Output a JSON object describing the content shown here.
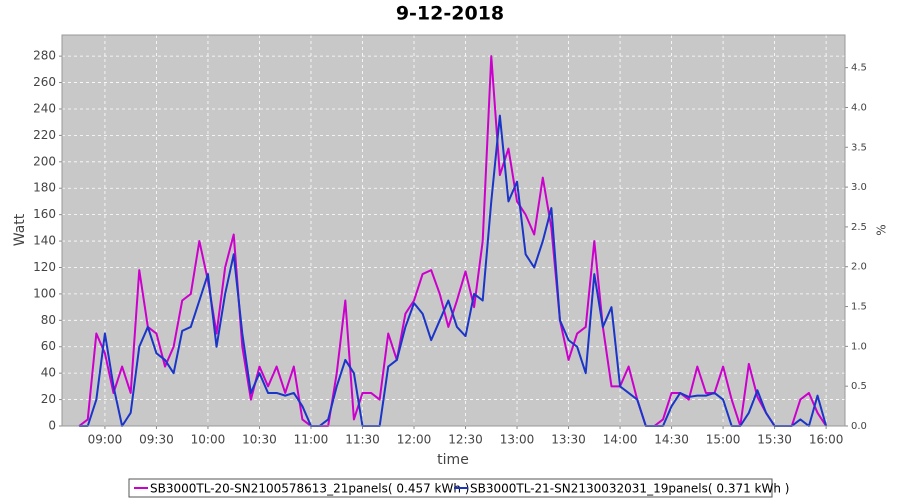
{
  "chart_data": {
    "type": "line",
    "title": "9-12-2018",
    "xlabel": "time",
    "ylabel": "Watt",
    "y2label": "%",
    "x": [
      "08:45",
      "08:50",
      "08:55",
      "09:00",
      "09:05",
      "09:10",
      "09:15",
      "09:20",
      "09:25",
      "09:30",
      "09:35",
      "09:40",
      "09:45",
      "09:50",
      "09:55",
      "10:00",
      "10:05",
      "10:10",
      "10:15",
      "10:20",
      "10:25",
      "10:30",
      "10:35",
      "10:40",
      "10:45",
      "10:50",
      "10:55",
      "11:00",
      "11:05",
      "11:10",
      "11:15",
      "11:20",
      "11:25",
      "11:30",
      "11:35",
      "11:40",
      "11:45",
      "11:50",
      "11:55",
      "12:00",
      "12:05",
      "12:10",
      "12:15",
      "12:20",
      "12:25",
      "12:30",
      "12:35",
      "12:40",
      "12:45",
      "12:50",
      "12:55",
      "13:00",
      "13:05",
      "13:10",
      "13:15",
      "13:20",
      "13:25",
      "13:30",
      "13:35",
      "13:40",
      "13:45",
      "13:50",
      "13:55",
      "14:00",
      "14:05",
      "14:10",
      "14:15",
      "14:20",
      "14:25",
      "14:30",
      "14:35",
      "14:40",
      "14:45",
      "14:50",
      "14:55",
      "15:00",
      "15:05",
      "15:10",
      "15:15",
      "15:20",
      "15:25",
      "15:30",
      "15:35",
      "15:40",
      "15:45",
      "15:50",
      "15:55",
      "16:00"
    ],
    "series": [
      {
        "name": "SB3000TL-20-SN2100578613_21panels( 0.457 kWh )",
        "color": "#cc00cc",
        "values": [
          0,
          5,
          70,
          55,
          25,
          45,
          25,
          118,
          75,
          70,
          45,
          60,
          95,
          100,
          140,
          110,
          70,
          120,
          145,
          60,
          20,
          45,
          30,
          45,
          25,
          45,
          5,
          0,
          0,
          0,
          40,
          95,
          5,
          25,
          25,
          20,
          70,
          50,
          85,
          95,
          115,
          118,
          100,
          75,
          95,
          117,
          90,
          140,
          280,
          190,
          210,
          170,
          160,
          145,
          188,
          150,
          80,
          50,
          70,
          75,
          140,
          75,
          30,
          30,
          45,
          20,
          0,
          0,
          5,
          25,
          25,
          20,
          45,
          25,
          25,
          45,
          20,
          0,
          47,
          22,
          10,
          0,
          0,
          0,
          20,
          25,
          10,
          0
        ]
      },
      {
        "name": "SB3000TL-21-SN2130032031_19panels( 0.371 kWh )",
        "color": "#1a35c8",
        "values": [
          0,
          0,
          20,
          70,
          30,
          0,
          10,
          60,
          75,
          55,
          50,
          40,
          72,
          75,
          95,
          115,
          60,
          100,
          130,
          70,
          25,
          40,
          25,
          25,
          23,
          25,
          15,
          0,
          0,
          5,
          30,
          50,
          40,
          0,
          0,
          0,
          45,
          50,
          75,
          93,
          85,
          65,
          80,
          95,
          75,
          68,
          100,
          95,
          170,
          235,
          170,
          185,
          130,
          120,
          140,
          165,
          80,
          65,
          60,
          40,
          115,
          75,
          90,
          30,
          25,
          20,
          0,
          0,
          0,
          15,
          25,
          22,
          23,
          23,
          25,
          20,
          0,
          0,
          10,
          27,
          10,
          0,
          0,
          0,
          5,
          0,
          23,
          0
        ]
      }
    ],
    "xlim": [
      "08:35",
      "16:11"
    ],
    "xticks": [
      "09:00",
      "09:30",
      "10:00",
      "10:30",
      "11:00",
      "11:30",
      "12:00",
      "12:30",
      "13:00",
      "13:30",
      "14:00",
      "14:30",
      "15:00",
      "15:30",
      "16:00"
    ],
    "ylim": [
      0,
      296
    ],
    "yticks": [
      0,
      20,
      40,
      60,
      80,
      100,
      120,
      140,
      160,
      180,
      200,
      220,
      240,
      260,
      280
    ],
    "y2lim": [
      0,
      4.91
    ],
    "y2ticks": [
      {
        "value": 0,
        "label": "0.0"
      },
      0.5,
      {
        "value": 1,
        "label": "1.0"
      },
      1.5,
      {
        "value": 2,
        "label": "2.0"
      },
      2.5,
      {
        "value": 3,
        "label": "3.0"
      },
      3.5,
      {
        "value": 4,
        "label": "4.0"
      },
      4.5
    ],
    "grid": true
  }
}
